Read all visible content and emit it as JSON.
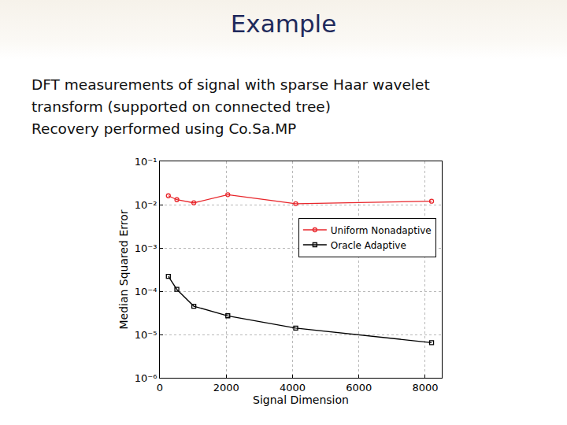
{
  "slide": {
    "title": "Example",
    "lines": [
      "DFT measurements of signal with sparse Haar wavelet",
      "transform (supported on connected tree)",
      "Recovery performed using Co.Sa.MP"
    ]
  },
  "chart_data": {
    "type": "line",
    "x_label": "Signal Dimension",
    "y_label": "Median Squared Error",
    "x": [
      256,
      512,
      1024,
      2048,
      4096,
      8192
    ],
    "series": [
      {
        "name": "Uniform Nonadaptive",
        "color": "#e8262b",
        "marker": "circle",
        "line_style": "solid",
        "values": [
          0.016,
          0.013,
          0.011,
          0.017,
          0.0105,
          0.012
        ]
      },
      {
        "name": "Oracle Adaptive",
        "color": "#000000",
        "marker": "square",
        "line_style": "solid",
        "values": [
          0.00022,
          0.00011,
          4.5e-05,
          2.7e-05,
          1.4e-05,
          6.5e-06
        ]
      }
    ],
    "xlim": [
      0,
      8500
    ],
    "xticks": [
      0,
      2000,
      4000,
      6000,
      8000
    ],
    "ylim": [
      1e-06,
      0.1
    ],
    "yticks": [
      {
        "value": 1e-06,
        "label": "10⁻⁶"
      },
      {
        "value": 1e-05,
        "label": "10⁻⁵"
      },
      {
        "value": 0.0001,
        "label": "10⁻⁴"
      },
      {
        "value": 0.001,
        "label": "10⁻³"
      },
      {
        "value": 0.01,
        "label": "10⁻²"
      },
      {
        "value": 0.1,
        "label": "10⁻¹"
      }
    ],
    "log": "y",
    "grid": true,
    "legend": "upper right"
  }
}
